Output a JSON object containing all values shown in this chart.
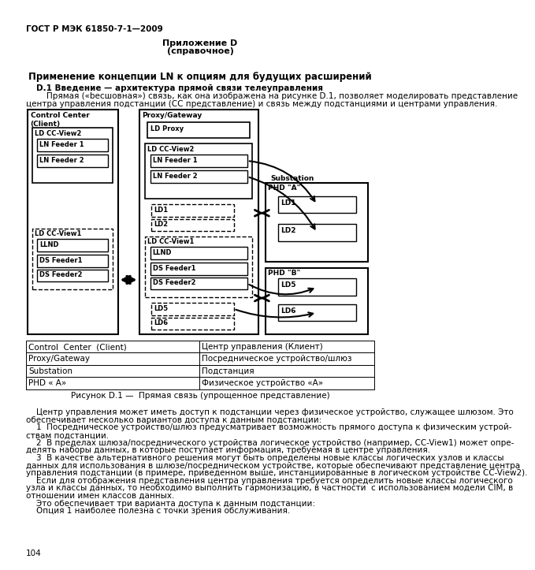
{
  "page_title": "ГОСТ Р МЭК 61850-7-1—2009",
  "appendix_line1": "Приложение D",
  "appendix_line2": "(справочное)",
  "section_title": "Применение концепции LN к опциям для будущих расширений",
  "intro_bold": "D.1 Введение — архитектура прямой связи телеуправления",
  "intro_text1": "    Прямая («bесшовная») связь, как она изображена на рисунке D.1, позволяет моделировать представление",
  "intro_text2": "центра управления подстанции (СС представление) и связь между подстанциями и центрами управления.",
  "figure_caption": "Рисунок D.1 —  Прямая связь (упрощенное представление)",
  "table_data": [
    [
      "Control  Center  (Client)",
      "Центр управления (Клиент)"
    ],
    [
      "Proxy/Gateway",
      "Посредническое устройство/шлюз"
    ],
    [
      "Substation",
      "Подстанция"
    ],
    [
      "PHD « А»",
      "Физическое устройство «А»"
    ]
  ],
  "body_lines": [
    "    Центр управления может иметь доступ к подстанции через физическое устройство, служащее шлюзом. Это",
    "обеспечивает несколько вариантов доступа к данным подстанции:",
    "    1  Посредническое устройство/шлюз предусматривает возможность прямого доступа к физическим устрой-",
    "ствам подстанции.",
    "    2  В пределах шлюза/посреднического устройства логическое устройство (например, СС-View1) может опре-",
    "делять наборы данных, в которые поступает информация, требуемая в центре управления.",
    "    3  В качестве альтернативного решения могут быть определены новые классы логических узлов и классы",
    "данных для использования в шлюзе/посредническом устройстве, которые обеспечивают представление центра",
    "управления подстанции (в примере, приведенном выше, инстанциированные в логическом устройстве СС-View2).",
    "    Если для отображения представления центра управления требуется определить новые классы логического",
    "узла и классы данных, то необходимо выполнить гармонизацию, в частности  с использованием модели CIM, в",
    "отношении имен классов данных.",
    "    Это обеспечивает три варианта доступа к данным подстанции:",
    "    Опция 1 наиболее полезна с точки зрения обслуживания."
  ],
  "page_number": "104",
  "bg_color": "#ffffff"
}
